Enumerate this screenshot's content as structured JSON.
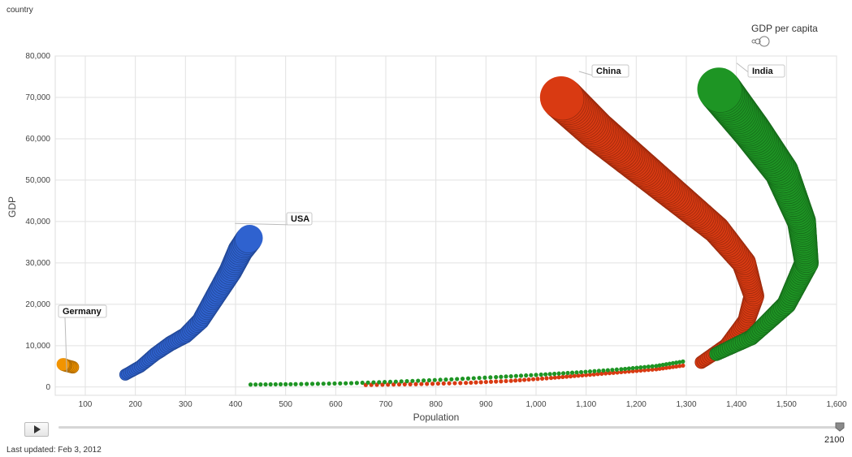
{
  "header": {
    "color_by_label": "country"
  },
  "size_legend": {
    "label": "GDP per capita"
  },
  "controls": {
    "play_icon": "play-icon",
    "current_year": "2100"
  },
  "footer": {
    "last_updated": "Last updated: Feb 3, 2012"
  },
  "chart_data": {
    "type": "scatter",
    "variant": "motion-chart-bubble-trails",
    "xlabel": "Population",
    "ylabel": "GDP",
    "xlim": [
      40,
      1600
    ],
    "ylim": [
      -2000,
      80000
    ],
    "x_ticks": [
      "100",
      "200",
      "300",
      "400",
      "500",
      "600",
      "700",
      "800",
      "900",
      "1,000",
      "1,100",
      "1,200",
      "1,300",
      "1,400",
      "1,500",
      "1,600"
    ],
    "x_tick_values": [
      100,
      200,
      300,
      400,
      500,
      600,
      700,
      800,
      900,
      1000,
      1100,
      1200,
      1300,
      1400,
      1500,
      1600
    ],
    "y_ticks": [
      "0",
      "10,000",
      "20,000",
      "30,000",
      "40,000",
      "50,000",
      "60,000",
      "70,000",
      "80,000"
    ],
    "y_tick_values": [
      0,
      10000,
      20000,
      30000,
      40000,
      50000,
      60000,
      70000,
      80000
    ],
    "grid": true,
    "size_by": "GDP per capita",
    "series": [
      {
        "name": "Germany",
        "color": "#f29400",
        "points": [
          [
            75,
            4800
          ],
          [
            62,
            5200
          ],
          [
            55,
            5500
          ]
        ]
      },
      {
        "name": "USA",
        "color": "#2f62cf",
        "points": [
          [
            180,
            3000
          ],
          [
            210,
            5000
          ],
          [
            240,
            8000
          ],
          [
            270,
            10500
          ],
          [
            300,
            12500
          ],
          [
            330,
            16000
          ],
          [
            360,
            22000
          ],
          [
            390,
            28000
          ],
          [
            410,
            33000
          ],
          [
            428,
            36000
          ]
        ]
      },
      {
        "name": "China",
        "color": "#d93a12",
        "points": [
          [
            1330,
            6000
          ],
          [
            1380,
            10000
          ],
          [
            1420,
            16000
          ],
          [
            1435,
            22000
          ],
          [
            1415,
            30000
          ],
          [
            1360,
            38000
          ],
          [
            1280,
            46000
          ],
          [
            1200,
            54000
          ],
          [
            1120,
            62000
          ],
          [
            1050,
            70000
          ]
        ]
      },
      {
        "name": "India",
        "color": "#1e9524",
        "points": [
          [
            1360,
            8000
          ],
          [
            1430,
            12000
          ],
          [
            1500,
            20000
          ],
          [
            1540,
            30000
          ],
          [
            1530,
            40000
          ],
          [
            1490,
            52000
          ],
          [
            1430,
            62000
          ],
          [
            1365,
            72000
          ]
        ]
      }
    ],
    "dotted_trails": [
      {
        "series": "China",
        "color": "#d93a12",
        "points": [
          [
            660,
            500
          ],
          [
            760,
            700
          ],
          [
            860,
            1000
          ],
          [
            950,
            1500
          ],
          [
            1030,
            2200
          ],
          [
            1100,
            2900
          ],
          [
            1170,
            3600
          ],
          [
            1240,
            4300
          ],
          [
            1300,
            5300
          ]
        ]
      },
      {
        "series": "India",
        "color": "#1e9524",
        "points": [
          [
            430,
            600
          ],
          [
            520,
            700
          ],
          [
            620,
            900
          ],
          [
            720,
            1300
          ],
          [
            820,
            1800
          ],
          [
            920,
            2400
          ],
          [
            1010,
            3000
          ],
          [
            1090,
            3600
          ],
          [
            1170,
            4300
          ],
          [
            1240,
            5100
          ],
          [
            1300,
            6300
          ]
        ]
      }
    ],
    "annotations": [
      "Germany",
      "USA",
      "China",
      "India"
    ]
  }
}
